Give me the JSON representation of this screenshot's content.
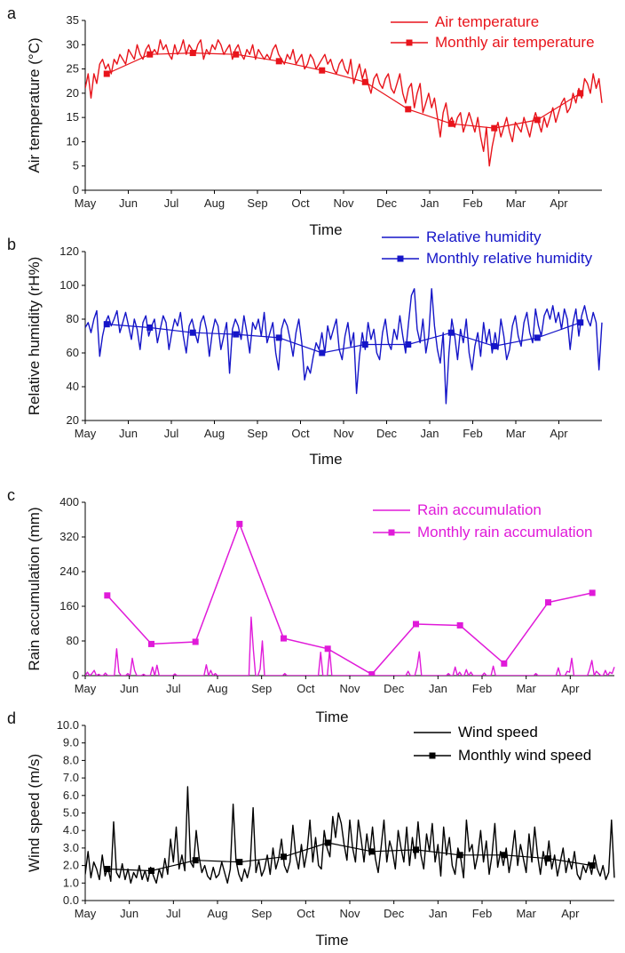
{
  "chart_data": [
    {
      "panel": "a",
      "type": "line",
      "xlabel": "Time",
      "ylabel": "Air temperature (°C)",
      "ylim": [
        0,
        35
      ],
      "yticks": [
        "0",
        "5",
        "10",
        "15",
        "20",
        "25",
        "30",
        "35"
      ],
      "months": [
        "May",
        "Jun",
        "Jul",
        "Aug",
        "Sep",
        "Oct",
        "Nov",
        "Dec",
        "Jan",
        "Feb",
        "Mar",
        "Apr"
      ],
      "color": "#e8141b",
      "legend_position": "top-right",
      "series": [
        {
          "name": "Air temperature",
          "kind": "daily",
          "values": [
            21,
            24,
            19,
            24,
            22,
            26,
            27,
            25,
            26,
            24,
            27,
            26,
            28,
            27,
            26,
            29,
            28,
            27,
            30,
            28,
            27,
            29,
            30,
            28,
            29,
            28,
            31,
            29,
            30,
            28,
            27,
            30,
            28,
            29,
            31,
            28,
            30,
            29,
            28,
            30,
            31,
            27,
            29,
            28,
            30,
            29,
            31,
            30,
            28,
            29,
            30,
            27,
            29,
            30,
            28,
            27,
            29,
            28,
            30,
            27,
            29,
            28,
            27,
            28,
            27,
            29,
            30,
            28,
            27,
            26,
            28,
            27,
            29,
            26,
            27,
            28,
            25,
            26,
            28,
            27,
            25,
            26,
            27,
            28,
            26,
            27,
            25,
            24,
            26,
            27,
            25,
            24,
            27,
            22,
            24,
            26,
            23,
            25,
            22,
            20,
            23,
            24,
            22,
            21,
            23,
            24,
            21,
            20,
            22,
            24,
            20,
            18,
            21,
            22,
            17,
            20,
            22,
            16,
            18,
            20,
            17,
            19,
            15,
            11,
            16,
            18,
            14,
            15,
            13,
            15,
            16,
            12,
            14,
            16,
            14,
            12,
            15,
            11,
            8,
            13,
            5,
            9,
            12,
            14,
            11,
            13,
            15,
            12,
            10,
            14,
            13,
            12,
            15,
            13,
            11,
            14,
            16,
            14,
            12,
            15,
            13,
            15,
            17,
            14,
            16,
            18,
            19,
            16,
            17,
            20,
            18,
            21,
            19,
            23,
            22,
            20,
            24,
            21,
            23,
            18
          ]
        },
        {
          "name": "Monthly air temperature",
          "kind": "monthly",
          "values": [
            24,
            28,
            28.3,
            28,
            26.6,
            24.7,
            22.3,
            16.7,
            13.7,
            12.8,
            14.5,
            20
          ]
        }
      ]
    },
    {
      "panel": "b",
      "type": "line",
      "xlabel": "Time",
      "ylabel": "Relative humidity (rH%)",
      "ylim": [
        20,
        120
      ],
      "yticks": [
        "20",
        "40",
        "60",
        "80",
        "100",
        "120"
      ],
      "months": [
        "May",
        "Jun",
        "Jul",
        "Aug",
        "Sep",
        "Oct",
        "Nov",
        "Dec",
        "Jan",
        "Feb",
        "Mar",
        "Apr"
      ],
      "color": "#1515c8",
      "legend_position": "top-right",
      "series": [
        {
          "name": "Relative humidity",
          "kind": "daily",
          "values": [
            75,
            78,
            72,
            80,
            85,
            58,
            70,
            78,
            82,
            76,
            80,
            85,
            72,
            78,
            84,
            76,
            68,
            80,
            74,
            62,
            78,
            82,
            70,
            76,
            80,
            66,
            74,
            82,
            78,
            62,
            72,
            80,
            76,
            84,
            70,
            60,
            76,
            80,
            72,
            66,
            78,
            82,
            74,
            58,
            72,
            80,
            76,
            62,
            70,
            78,
            48,
            74,
            80,
            76,
            68,
            82,
            72,
            60,
            78,
            74,
            80,
            70,
            84,
            66,
            72,
            78,
            60,
            50,
            74,
            80,
            76,
            68,
            58,
            72,
            80,
            66,
            44,
            52,
            48,
            58,
            66,
            62,
            72,
            60,
            76,
            68,
            74,
            80,
            62,
            56,
            70,
            78,
            64,
            72,
            36,
            58,
            72,
            62,
            78,
            68,
            74,
            60,
            56,
            72,
            80,
            66,
            62,
            74,
            68,
            82,
            70,
            60,
            78,
            94,
            98,
            74,
            66,
            80,
            60,
            70,
            98,
            76,
            62,
            54,
            72,
            30,
            60,
            80,
            70,
            56,
            74,
            66,
            80,
            60,
            50,
            64,
            72,
            58,
            78,
            66,
            74,
            60,
            72,
            62,
            80,
            70,
            56,
            62,
            76,
            82,
            70,
            64,
            78,
            84,
            72,
            66,
            86,
            76,
            70,
            82,
            86,
            80,
            88,
            78,
            84,
            74,
            86,
            80,
            62,
            78,
            86,
            70,
            82,
            88,
            80,
            76,
            84,
            78,
            50,
            78
          ]
        },
        {
          "name": "Monthly relative humidity",
          "kind": "monthly",
          "values": [
            77,
            75,
            72,
            71,
            69,
            60,
            65,
            65,
            72,
            64,
            69,
            78
          ]
        }
      ]
    },
    {
      "panel": "c",
      "type": "line",
      "xlabel": "Time",
      "ylabel": "Rain accumulation (mm)",
      "ylim": [
        0,
        400
      ],
      "yticks": [
        "0",
        "80",
        "160",
        "240",
        "320",
        "400"
      ],
      "months": [
        "May",
        "Jun",
        "Jul",
        "Aug",
        "Sep",
        "Oct",
        "Nov",
        "Dec",
        "Jan",
        "Feb",
        "Mar",
        "Apr"
      ],
      "color": "#e01ad9",
      "legend_position": "top-right",
      "series": [
        {
          "name": "Rain accumulation",
          "kind": "daily",
          "values": [
            0,
            8,
            0,
            5,
            12,
            0,
            3,
            0,
            0,
            6,
            0,
            0,
            0,
            0,
            62,
            8,
            0,
            0,
            0,
            5,
            0,
            40,
            12,
            0,
            0,
            0,
            3,
            0,
            0,
            0,
            20,
            0,
            24,
            0,
            0,
            0,
            0,
            0,
            0,
            0,
            4,
            0,
            0,
            0,
            0,
            0,
            0,
            0,
            0,
            0,
            0,
            0,
            0,
            0,
            25,
            0,
            12,
            0,
            5,
            0,
            0,
            0,
            0,
            0,
            0,
            0,
            0,
            0,
            0,
            0,
            0,
            0,
            0,
            0,
            135,
            60,
            0,
            0,
            15,
            80,
            0,
            0,
            0,
            0,
            0,
            0,
            0,
            0,
            0,
            5,
            0,
            0,
            0,
            0,
            0,
            0,
            0,
            0,
            0,
            0,
            0,
            0,
            0,
            0,
            0,
            54,
            0,
            0,
            0,
            58,
            0,
            0,
            0,
            0,
            0,
            0,
            0,
            0,
            0,
            0,
            0,
            0,
            0,
            0,
            0,
            0,
            0,
            0,
            0,
            0,
            0,
            0,
            0,
            0,
            0,
            0,
            0,
            0,
            0,
            0,
            0,
            0,
            0,
            0,
            10,
            0,
            0,
            0,
            20,
            55,
            0,
            0,
            0,
            0,
            0,
            0,
            0,
            0,
            0,
            0,
            0,
            0,
            5,
            0,
            0,
            20,
            0,
            8,
            0,
            0,
            14,
            0,
            8,
            0,
            0,
            0,
            0,
            0,
            6,
            0,
            0,
            0,
            22,
            0,
            0,
            0,
            0,
            0,
            0,
            0,
            0,
            0,
            0,
            0,
            0,
            0,
            0,
            0,
            0,
            0,
            0,
            5,
            0,
            0,
            0,
            0,
            0,
            0,
            0,
            0,
            0,
            18,
            0,
            0,
            0,
            10,
            8,
            40,
            0,
            0,
            0,
            0,
            0,
            0,
            0,
            15,
            35,
            0,
            10,
            5,
            0,
            0,
            12,
            0,
            8,
            5,
            20
          ]
        },
        {
          "name": "Monthly rain accumulation",
          "kind": "monthly",
          "values": [
            185,
            73,
            78,
            350,
            86,
            62,
            3,
            119,
            116,
            28,
            169,
            191
          ]
        }
      ]
    },
    {
      "panel": "d",
      "type": "line",
      "xlabel": "Time",
      "ylabel": "Wind speed (m/s)",
      "ylim": [
        0,
        10
      ],
      "yticks": [
        "0.0",
        "1.0",
        "2.0",
        "3.0",
        "4.0",
        "5.0",
        "6.0",
        "7.0",
        "8.0",
        "9.0",
        "10.0"
      ],
      "months": [
        "May",
        "Jun",
        "Jul",
        "Aug",
        "Sep",
        "Oct",
        "Nov",
        "Dec",
        "Jan",
        "Feb",
        "Mar",
        "Apr"
      ],
      "color": "#000000",
      "legend_position": "top-right",
      "series": [
        {
          "name": "Wind speed",
          "kind": "daily",
          "values": [
            1.5,
            2.8,
            1.3,
            2.2,
            1.8,
            1.2,
            2.6,
            1.4,
            1.9,
            1.1,
            4.5,
            1.6,
            1.3,
            2.1,
            1.2,
            1.8,
            1.0,
            1.6,
            1.3,
            2.0,
            1.2,
            1.7,
            1.1,
            1.9,
            1.4,
            1.0,
            1.8,
            1.3,
            2.4,
            1.5,
            3.5,
            2.2,
            4.2,
            1.8,
            2.6,
            1.7,
            6.5,
            2.2,
            1.9,
            4.0,
            2.5,
            1.6,
            2.0,
            1.4,
            1.2,
            1.9,
            1.3,
            1.5,
            2.2,
            1.6,
            1.0,
            1.8,
            5.5,
            2.3,
            1.5,
            1.1,
            1.8,
            1.3,
            2.0,
            5.3,
            1.6,
            2.3,
            1.4,
            1.8,
            2.6,
            1.5,
            3.0,
            1.8,
            2.4,
            3.5,
            2.0,
            1.6,
            2.2,
            4.3,
            2.6,
            1.8,
            3.2,
            1.9,
            2.8,
            4.6,
            2.2,
            3.6,
            2.0,
            1.8,
            4.0,
            3.0,
            2.5,
            4.8,
            3.6,
            5.0,
            4.4,
            3.2,
            2.3,
            4.6,
            3.0,
            2.2,
            4.6,
            3.5,
            2.2,
            3.8,
            2.6,
            4.2,
            2.4,
            1.6,
            3.0,
            4.6,
            2.2,
            3.4,
            2.8,
            1.8,
            4.0,
            3.0,
            2.2,
            4.2,
            2.0,
            3.6,
            2.4,
            4.5,
            2.6,
            1.8,
            3.8,
            2.8,
            4.4,
            2.2,
            3.2,
            1.4,
            4.2,
            2.6,
            3.6,
            2.0,
            1.5,
            3.0,
            2.4,
            1.3,
            4.6,
            2.8,
            3.2,
            1.8,
            2.6,
            4.0,
            2.2,
            3.4,
            1.5,
            2.6,
            4.4,
            1.9,
            2.8,
            2.0,
            3.0,
            1.6,
            2.6,
            4.0,
            2.0,
            3.2,
            2.4,
            1.6,
            3.8,
            2.2,
            4.2,
            2.6,
            1.5,
            2.8,
            2.0,
            3.4,
            1.8,
            2.6,
            1.4,
            2.2,
            3.0,
            1.6,
            2.4,
            1.8,
            2.8,
            1.5,
            1.2,
            2.0,
            1.6,
            2.2,
            1.5,
            2.6,
            1.8,
            1.4,
            2.0,
            1.2,
            1.6,
            4.6,
            1.3
          ]
        },
        {
          "name": "Monthly wind speed",
          "kind": "monthly",
          "values": [
            1.8,
            1.7,
            2.3,
            2.2,
            2.5,
            3.3,
            2.8,
            2.9,
            2.6,
            2.6,
            2.4,
            2.0
          ]
        }
      ]
    }
  ]
}
